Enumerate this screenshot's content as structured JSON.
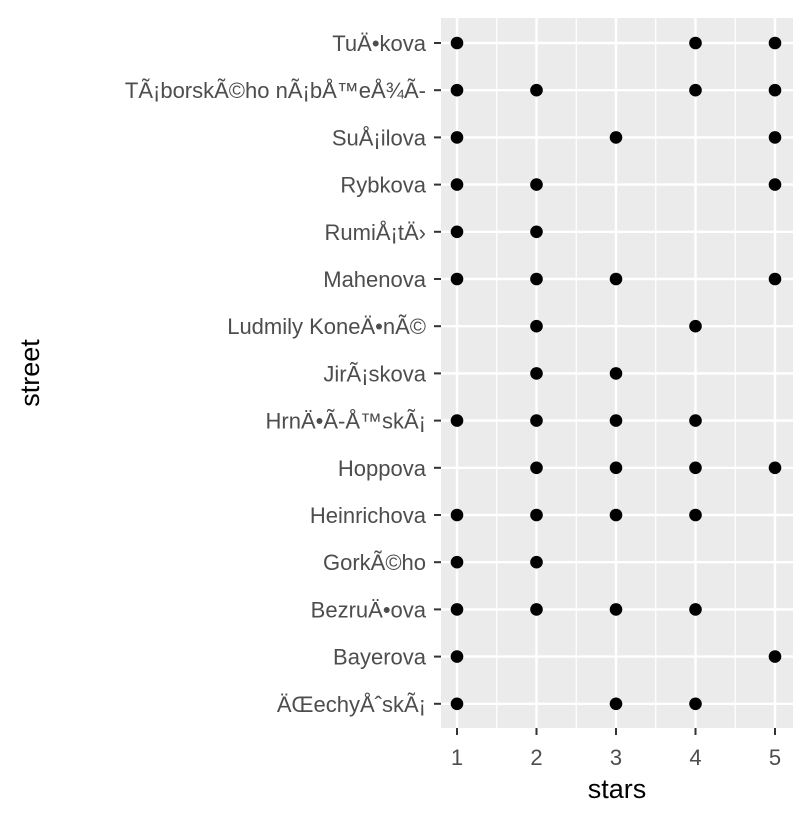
{
  "chart_data": {
    "type": "scatter",
    "xlabel": "stars",
    "ylabel": "street",
    "xlim": [
      0.9,
      5.2
    ],
    "xticks": [
      "1",
      "2",
      "3",
      "4",
      "5"
    ],
    "grid": true,
    "colors": {
      "panel": "#ebebeb",
      "gridline": "#ffffff",
      "point": "#000000",
      "tick_text": "#4d4d4d",
      "axis_text": "#000000"
    },
    "categories": [
      "TuÄ•kova",
      "TÃ¡borskÃ©ho nÃ¡bÅ™eÅ¾Ã-",
      "SuÅ¡ilova",
      "Rybkova",
      "RumiÅ¡tÄ›",
      "Mahenova",
      "Ludmily KoneÄ•nÃ©",
      "JirÃ¡skova",
      "HrnÄ•Ã-Å™skÃ¡",
      "Hoppova",
      "Heinrichova",
      "GorkÃ©ho",
      "BezruÄ•ova",
      "Bayerova",
      "ÄŒechyÅˆskÃ¡"
    ],
    "points": [
      {
        "street": "TuÄ•kova",
        "stars": 1
      },
      {
        "street": "TuÄ•kova",
        "stars": 4
      },
      {
        "street": "TuÄ•kova",
        "stars": 5
      },
      {
        "street": "TÃ¡borskÃ©ho nÃ¡bÅ™eÅ¾Ã-",
        "stars": 1
      },
      {
        "street": "TÃ¡borskÃ©ho nÃ¡bÅ™eÅ¾Ã-",
        "stars": 2
      },
      {
        "street": "TÃ¡borskÃ©ho nÃ¡bÅ™eÅ¾Ã-",
        "stars": 4
      },
      {
        "street": "TÃ¡borskÃ©ho nÃ¡bÅ™eÅ¾Ã-",
        "stars": 5
      },
      {
        "street": "SuÅ¡ilova",
        "stars": 1
      },
      {
        "street": "SuÅ¡ilova",
        "stars": 3
      },
      {
        "street": "SuÅ¡ilova",
        "stars": 5
      },
      {
        "street": "Rybkova",
        "stars": 1
      },
      {
        "street": "Rybkova",
        "stars": 2
      },
      {
        "street": "Rybkova",
        "stars": 5
      },
      {
        "street": "RumiÅ¡tÄ›",
        "stars": 1
      },
      {
        "street": "RumiÅ¡tÄ›",
        "stars": 2
      },
      {
        "street": "Mahenova",
        "stars": 1
      },
      {
        "street": "Mahenova",
        "stars": 2
      },
      {
        "street": "Mahenova",
        "stars": 3
      },
      {
        "street": "Mahenova",
        "stars": 5
      },
      {
        "street": "Ludmily KoneÄ•nÃ©",
        "stars": 2
      },
      {
        "street": "Ludmily KoneÄ•nÃ©",
        "stars": 4
      },
      {
        "street": "JirÃ¡skova",
        "stars": 2
      },
      {
        "street": "JirÃ¡skova",
        "stars": 3
      },
      {
        "street": "HrnÄ•Ã-Å™skÃ¡",
        "stars": 1
      },
      {
        "street": "HrnÄ•Ã-Å™skÃ¡",
        "stars": 2
      },
      {
        "street": "HrnÄ•Ã-Å™skÃ¡",
        "stars": 3
      },
      {
        "street": "HrnÄ•Ã-Å™skÃ¡",
        "stars": 4
      },
      {
        "street": "Hoppova",
        "stars": 2
      },
      {
        "street": "Hoppova",
        "stars": 3
      },
      {
        "street": "Hoppova",
        "stars": 4
      },
      {
        "street": "Hoppova",
        "stars": 5
      },
      {
        "street": "Heinrichova",
        "stars": 1
      },
      {
        "street": "Heinrichova",
        "stars": 2
      },
      {
        "street": "Heinrichova",
        "stars": 3
      },
      {
        "street": "Heinrichova",
        "stars": 4
      },
      {
        "street": "GorkÃ©ho",
        "stars": 1
      },
      {
        "street": "GorkÃ©ho",
        "stars": 2
      },
      {
        "street": "BezruÄ•ova",
        "stars": 1
      },
      {
        "street": "BezruÄ•ova",
        "stars": 2
      },
      {
        "street": "BezruÄ•ova",
        "stars": 3
      },
      {
        "street": "BezruÄ•ova",
        "stars": 4
      },
      {
        "street": "Bayerova",
        "stars": 1
      },
      {
        "street": "Bayerova",
        "stars": 5
      },
      {
        "street": "ÄŒechyÅˆskÃ¡",
        "stars": 1
      },
      {
        "street": "ÄŒechyÅˆskÃ¡",
        "stars": 3
      },
      {
        "street": "ÄŒechyÅˆskÃ¡",
        "stars": 4
      }
    ]
  }
}
